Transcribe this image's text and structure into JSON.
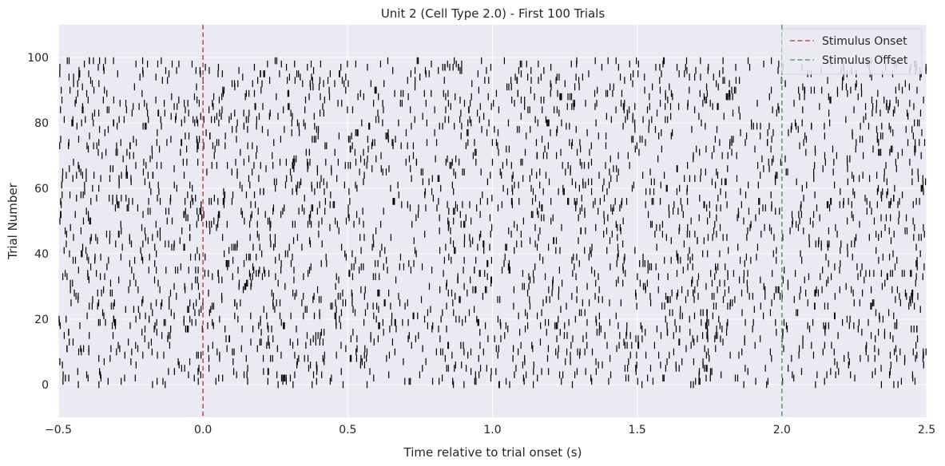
{
  "chart_data": {
    "type": "scatter",
    "subtype": "raster",
    "title": "Unit 2 (Cell Type 2.0) - First 100 Trials",
    "xlabel": "Time relative to trial onset (s)",
    "ylabel": "Trial Number",
    "xlim": [
      -0.5,
      2.5
    ],
    "ylim": [
      -10,
      110
    ],
    "xticks": [
      -0.5,
      0.0,
      0.5,
      1.0,
      1.5,
      2.0,
      2.5
    ],
    "xtick_labels": [
      "−0.5",
      "0.0",
      "0.5",
      "1.0",
      "1.5",
      "2.0",
      "2.5"
    ],
    "yticks": [
      0,
      20,
      40,
      60,
      80,
      100
    ],
    "ytick_labels": [
      "0",
      "20",
      "40",
      "60",
      "80",
      "100"
    ],
    "grid": true,
    "background": "#eaeaf2",
    "grid_color": "#ffffff",
    "trial_count": 100,
    "spike_color": "#000000",
    "spike_rate_hz": 11,
    "markers": [
      {
        "name": "Stimulus Onset",
        "x": 0.0,
        "color": "#c44e52",
        "style": "dashed"
      },
      {
        "name": "Stimulus Offset",
        "x": 2.0,
        "color": "#55a868",
        "style": "dashed"
      }
    ],
    "legend": {
      "placement": "top-right",
      "entries": [
        "Stimulus Onset",
        "Stimulus Offset"
      ]
    }
  }
}
